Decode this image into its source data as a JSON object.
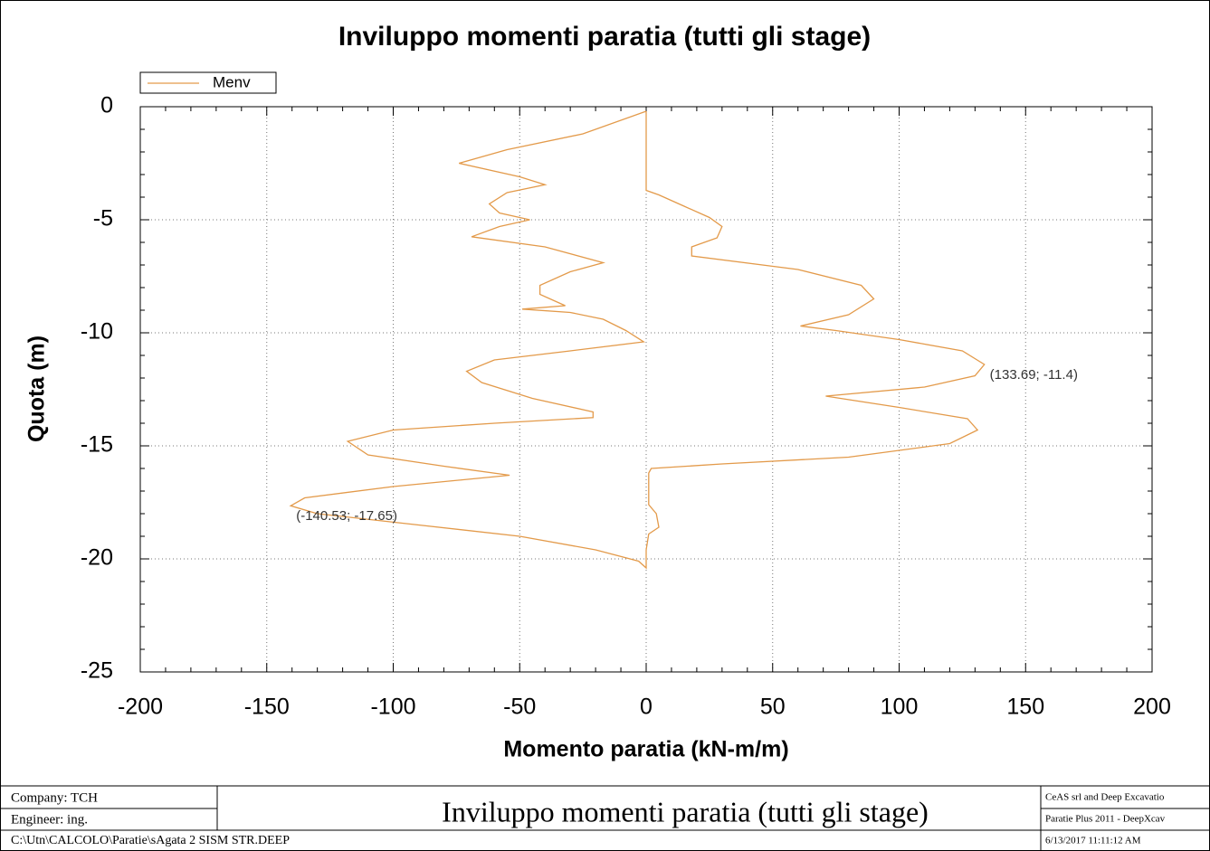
{
  "chart_data": {
    "type": "line",
    "title": "Inviluppo momenti paratia (tutti gli stage)",
    "xlabel": "Momento paratia (kN-m/m)",
    "ylabel": "Quota (m)",
    "xlim": [
      -200,
      200
    ],
    "xticks": [
      -200,
      -150,
      -100,
      -50,
      0,
      50,
      100,
      150,
      200
    ],
    "ylim": [
      -25,
      0
    ],
    "yticks": [
      -25,
      -20,
      -15,
      -10,
      -5,
      0
    ],
    "grid": true,
    "legend": "top-left",
    "series": [
      {
        "name": "Menv",
        "color": "#e39a4a",
        "x": [
          0,
          -25,
          -55,
          -74,
          -50,
          -40,
          -55,
          -62,
          -58,
          -46,
          -58,
          -69,
          -40,
          -17,
          -30,
          -42,
          -42,
          -36,
          -32,
          -49,
          -30,
          -17,
          -8,
          -1,
          -30,
          -60,
          -71,
          -65,
          -45,
          -21,
          -21,
          -60,
          -100,
          -118,
          -110,
          -80,
          -54,
          -100,
          -135,
          -140.53,
          -130,
          -90,
          -50,
          -20,
          -3,
          0,
          0,
          1,
          5,
          4,
          1,
          1,
          2,
          30,
          80,
          120,
          131,
          127,
          100,
          71,
          110,
          130,
          133.69,
          125,
          100,
          75,
          61,
          80,
          90,
          85,
          60,
          18,
          18,
          28,
          30,
          25,
          15,
          5,
          0,
          0
        ],
        "values": [
          -0.2,
          -1.2,
          -1.9,
          -2.5,
          -3.1,
          -3.45,
          -3.8,
          -4.3,
          -4.7,
          -5.0,
          -5.3,
          -5.75,
          -6.2,
          -6.9,
          -7.3,
          -7.9,
          -8.3,
          -8.6,
          -8.8,
          -8.95,
          -9.1,
          -9.4,
          -9.9,
          -10.4,
          -10.8,
          -11.2,
          -11.7,
          -12.2,
          -12.9,
          -13.5,
          -13.75,
          -14.0,
          -14.3,
          -14.8,
          -15.4,
          -15.9,
          -16.3,
          -16.8,
          -17.3,
          -17.65,
          -18.0,
          -18.5,
          -19.0,
          -19.6,
          -20.1,
          -20.4,
          -19.6,
          -18.9,
          -18.6,
          -18.0,
          -17.6,
          -16.2,
          -16.0,
          -15.8,
          -15.5,
          -14.9,
          -14.3,
          -13.8,
          -13.3,
          -12.8,
          -12.4,
          -11.9,
          -11.4,
          -10.8,
          -10.3,
          -9.9,
          -9.7,
          -9.2,
          -8.5,
          -7.9,
          -7.2,
          -6.6,
          -6.2,
          -5.8,
          -5.3,
          -4.9,
          -4.4,
          -3.9,
          -3.7,
          -0.2
        ]
      }
    ],
    "annotations": [
      {
        "text": "(133.69; -11.4)",
        "x": 133.69,
        "y": -11.4
      },
      {
        "text": "(-140.53; -17.65)",
        "x": -140.53,
        "y": -17.65
      }
    ]
  },
  "footer": {
    "company": "Company: TCH",
    "engineer": "Engineer: ing.",
    "title": "Inviluppo momenti paratia (tutti gli stage)",
    "path": "C:\\Utn\\CALCOLO\\Paratie\\sAgata 2 SISM STR.DEEP",
    "vendor": "CeAS srl and Deep Excavatio",
    "software": "Paratie Plus 2011 - DeepXcav",
    "date": "6/13/2017 11:11:12 AM"
  }
}
